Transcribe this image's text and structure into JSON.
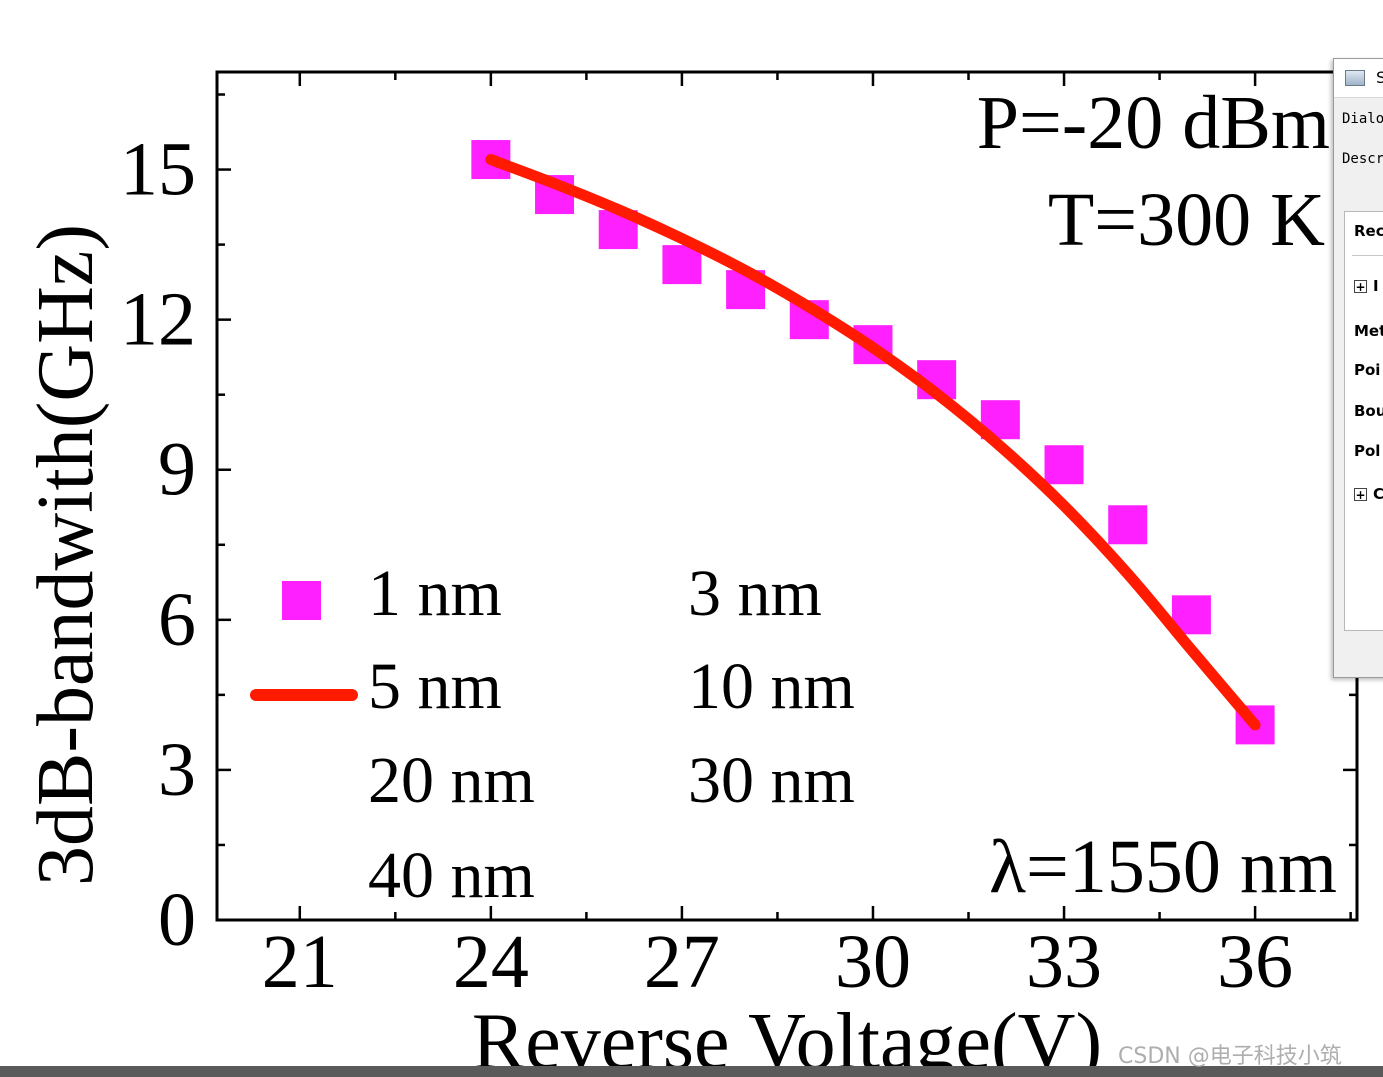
{
  "chart_data": {
    "type": "scatter",
    "xlabel": "Reverse Voltage(V)",
    "ylabel": "3dB-bandwith(GHz)",
    "xlim": [
      19.7,
      37.6
    ],
    "ylim": [
      0,
      16.95
    ],
    "xticks": [
      21,
      24,
      27,
      30,
      33,
      36
    ],
    "yticks": [
      0,
      3,
      6,
      9,
      12,
      15
    ],
    "annotations": [
      "P=-20 dBm",
      "T=300 K",
      "λ=1550 nm"
    ],
    "legend": {
      "position": "lower-left",
      "entries": [
        "1 nm",
        "3 nm",
        "5 nm",
        "10 nm",
        "20 nm",
        "30 nm",
        "40 nm"
      ]
    },
    "series": [
      {
        "name": "1 nm",
        "kind": "marker",
        "marker": "square",
        "color": "#ff20ff",
        "x": [
          24,
          25,
          26,
          27,
          28,
          29,
          30,
          31,
          32,
          33,
          34,
          35,
          36
        ],
        "y": [
          15.2,
          14.5,
          13.8,
          13.1,
          12.6,
          12.0,
          11.5,
          10.8,
          10.0,
          9.1,
          7.9,
          6.1,
          3.9
        ]
      },
      {
        "name": "5 nm",
        "kind": "line",
        "color": "#ff1a00",
        "x": [
          24,
          25,
          26,
          27,
          28,
          29,
          30,
          31,
          32,
          33,
          34,
          35,
          36
        ],
        "y": [
          15.2,
          14.72,
          14.2,
          13.62,
          12.98,
          12.25,
          11.44,
          10.52,
          9.47,
          8.28,
          6.92,
          5.4,
          3.9
        ]
      }
    ]
  },
  "dialog": {
    "title": "S",
    "row_dialog": "Dialo",
    "row_desc": "Descr",
    "row_rec": "Rec",
    "row_expand1": "I",
    "row_met": "Met",
    "row_poi": "Poi",
    "row_bou": "Bou",
    "row_pol": "Pol",
    "row_expand2": "C"
  },
  "watermark": "CSDN @电子科技小筑"
}
